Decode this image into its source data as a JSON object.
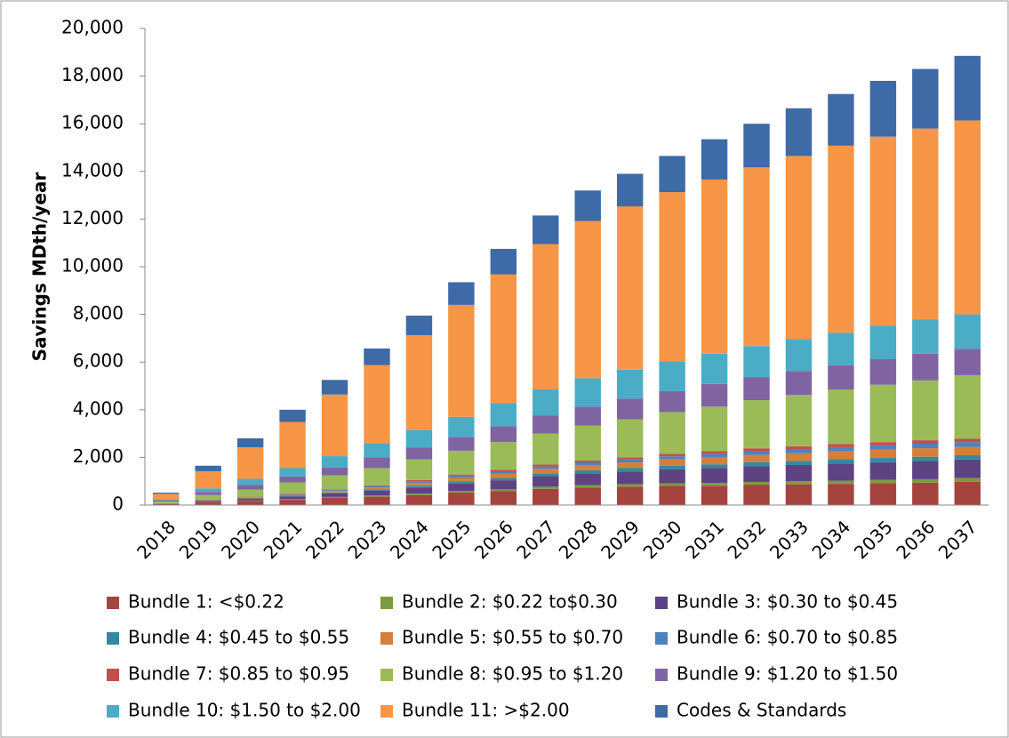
{
  "chart_data": {
    "type": "stacked_bar",
    "y_label": "Savings MDth/year",
    "categories": [
      "2018",
      "2019",
      "2020",
      "2021",
      "2022",
      "2023",
      "2024",
      "2025",
      "2026",
      "2027",
      "2028",
      "2029",
      "2030",
      "2031",
      "2032",
      "2033",
      "2034",
      "2035",
      "2036",
      "2037"
    ],
    "ylim": [
      0,
      20000
    ],
    "yticks": [
      0,
      {
        "value": 2000,
        "label": "2,000"
      },
      {
        "value": 4000,
        "label": "4,000"
      },
      {
        "value": 6000,
        "label": "6,000"
      },
      {
        "value": 8000,
        "label": "8,000"
      },
      {
        "value": 10000,
        "label": "10,000"
      },
      {
        "value": 12000,
        "label": "12,000"
      },
      {
        "value": 14000,
        "label": "14,000"
      },
      {
        "value": 16000,
        "label": "16,000"
      },
      {
        "value": 18000,
        "label": "18,000"
      },
      {
        "value": 20000,
        "label": "20,000"
      }
    ],
    "grid": false,
    "series": [
      {
        "name": "Bundle 1: <$0.22",
        "color": "#a5433f",
        "values": [
          40,
          110,
          170,
          220,
          300,
          350,
          420,
          520,
          580,
          680,
          740,
          770,
          800,
          810,
          840,
          870,
          890,
          920,
          940,
          980
        ]
      },
      {
        "name": "Bundle 2: $0.22 to$0.30",
        "color": "#7c9a3e",
        "values": [
          5,
          15,
          20,
          30,
          40,
          50,
          60,
          70,
          80,
          90,
          100,
          110,
          115,
          120,
          125,
          130,
          135,
          140,
          145,
          150
        ]
      },
      {
        "name": "Bundle 3: $0.30 to $0.45",
        "color": "#5e4382",
        "values": [
          15,
          45,
          70,
          110,
          150,
          200,
          260,
          310,
          380,
          440,
          490,
          530,
          580,
          620,
          660,
          680,
          720,
          740,
          760,
          780
        ]
      },
      {
        "name": "Bundle 4: $0.45 to $0.55",
        "color": "#338aa0",
        "values": [
          5,
          15,
          20,
          30,
          40,
          50,
          70,
          90,
          100,
          120,
          130,
          140,
          150,
          160,
          170,
          170,
          175,
          175,
          180,
          180
        ]
      },
      {
        "name": "Bundle 5: $0.55 to $0.70",
        "color": "#d4803c",
        "values": [
          5,
          20,
          30,
          40,
          60,
          90,
          120,
          150,
          170,
          190,
          220,
          240,
          270,
          290,
          310,
          320,
          340,
          350,
          360,
          350
        ]
      },
      {
        "name": "Bundle 6: $0.70 to $0.85",
        "color": "#4f81bd",
        "values": [
          5,
          15,
          20,
          30,
          40,
          50,
          70,
          80,
          90,
          100,
          110,
          120,
          130,
          140,
          150,
          160,
          170,
          180,
          190,
          200
        ]
      },
      {
        "name": "Bundle 7: $0.85 to $0.95",
        "color": "#c0504d",
        "values": [
          5,
          10,
          20,
          20,
          20,
          40,
          50,
          60,
          80,
          80,
          80,
          90,
          105,
          120,
          125,
          130,
          130,
          135,
          145,
          150
        ]
      },
      {
        "name": "Bundle 8: $0.95 to $1.20",
        "color": "#9bbb59",
        "values": [
          70,
          190,
          300,
          470,
          600,
          720,
          870,
          1000,
          1160,
          1300,
          1460,
          1600,
          1750,
          1870,
          2020,
          2160,
          2290,
          2410,
          2510,
          2660
        ]
      },
      {
        "name": "Bundle 9: $1.20 to $1.50",
        "color": "#8064a2",
        "values": [
          50,
          130,
          200,
          250,
          330,
          450,
          500,
          570,
          660,
          750,
          800,
          870,
          880,
          950,
          970,
          1000,
          1020,
          1070,
          1120,
          1110
        ]
      },
      {
        "name": "Bundle 10: $1.50 to $2.00",
        "color": "#4bacc6",
        "values": [
          50,
          150,
          250,
          350,
          470,
          600,
          730,
          850,
          980,
          1100,
          1190,
          1210,
          1250,
          1270,
          1300,
          1340,
          1360,
          1400,
          1430,
          1440
        ]
      },
      {
        "name": "Bundle 11: >$2.00",
        "color": "#f79646",
        "values": [
          220,
          720,
          1320,
          1930,
          2590,
          3270,
          3980,
          4700,
          5400,
          6100,
          6600,
          6850,
          7100,
          7310,
          7500,
          7690,
          7850,
          7940,
          8020,
          8140
        ]
      },
      {
        "name": "Codes & Standards",
        "color": "#3e6aa6",
        "values": [
          50,
          230,
          380,
          520,
          610,
          700,
          820,
          950,
          1070,
          1200,
          1280,
          1370,
          1520,
          1690,
          1830,
          2000,
          2170,
          2340,
          2500,
          2710
        ]
      }
    ]
  }
}
